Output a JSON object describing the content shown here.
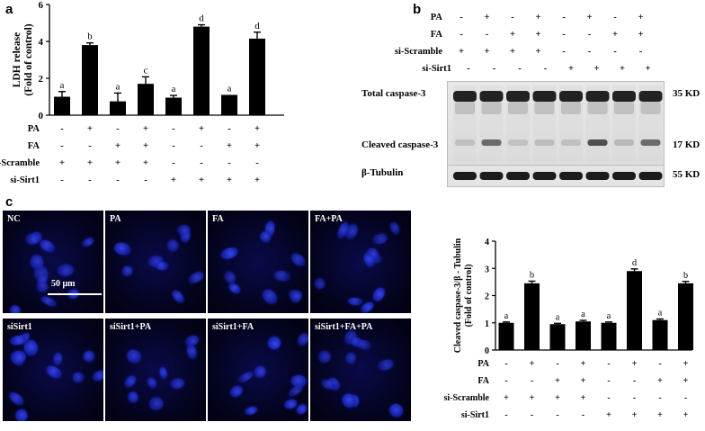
{
  "panels": {
    "a": "a",
    "b": "b",
    "c": "c"
  },
  "conditions": {
    "rows": [
      {
        "label": "PA",
        "signs": [
          "-",
          "+",
          "-",
          "+",
          "-",
          "+",
          "-",
          "+"
        ]
      },
      {
        "label": "FA",
        "signs": [
          "-",
          "-",
          "+",
          "+",
          "-",
          "-",
          "+",
          "+"
        ]
      },
      {
        "label": "si-Scramble",
        "signs": [
          "+",
          "+",
          "+",
          "+",
          "-",
          "-",
          "-",
          "-"
        ]
      },
      {
        "label": "si-Sirt1",
        "signs": [
          "-",
          "-",
          "-",
          "-",
          "+",
          "+",
          "+",
          "+"
        ]
      }
    ]
  },
  "chart_data": [
    {
      "type": "bar",
      "panel": "a",
      "ylabel": "LDH release (Fold of control)",
      "ylabel_lines": [
        "LDH release",
        "(Fold of control)"
      ],
      "ylim": [
        0,
        6
      ],
      "yticks": [
        "0",
        "2",
        "4",
        "6"
      ],
      "categories": [
        "1",
        "2",
        "3",
        "4",
        "5",
        "6",
        "7",
        "8"
      ],
      "values": [
        1.0,
        3.8,
        0.75,
        1.7,
        0.95,
        4.8,
        1.1,
        4.15
      ],
      "errors": [
        0.28,
        0.12,
        0.45,
        0.38,
        0.12,
        0.1,
        0.0,
        0.35
      ],
      "sig_letters": [
        "a",
        "b",
        "a",
        "c",
        "a",
        "d",
        "a",
        "d"
      ],
      "bar_color": "#000000"
    },
    {
      "type": "bar",
      "panel": "c",
      "ylabel": "Cleaved caspase-3/β - Tubulin (Fold of control)",
      "ylabel_lines": [
        "Cleaved caspase-3/β - Tubulin",
        "(Fold of control)"
      ],
      "ylim": [
        0,
        4
      ],
      "yticks": [
        "0",
        "1",
        "2",
        "3",
        "4"
      ],
      "categories": [
        "1",
        "2",
        "3",
        "4",
        "5",
        "6",
        "7",
        "8"
      ],
      "values": [
        1.0,
        2.45,
        0.95,
        1.05,
        1.0,
        2.9,
        1.1,
        2.45
      ],
      "errors": [
        0.03,
        0.08,
        0.03,
        0.04,
        0.03,
        0.08,
        0.04,
        0.07
      ],
      "sig_letters": [
        "a",
        "b",
        "a",
        "a",
        "a",
        "d",
        "a",
        "b"
      ],
      "bar_color": "#000000"
    }
  ],
  "western_blot": {
    "rows": [
      {
        "label": "Total  caspase-3",
        "marker": "35 KD"
      },
      {
        "label": "Cleaved caspase-3",
        "marker": "17 KD"
      },
      {
        "label": "β-Tubulin",
        "marker": "55 KD"
      }
    ],
    "lanes": 8
  },
  "microscopy": {
    "cells": [
      {
        "label": "NC"
      },
      {
        "label": "PA"
      },
      {
        "label": "FA"
      },
      {
        "label": "FA+PA"
      },
      {
        "label": "siSirt1"
      },
      {
        "label": "siSirt1+PA"
      },
      {
        "label": "siSirt1+FA"
      },
      {
        "label": "siSirt1+FA+PA"
      }
    ],
    "scale_bar": "50 μm",
    "nucleus_color": "#1f2bd0"
  }
}
